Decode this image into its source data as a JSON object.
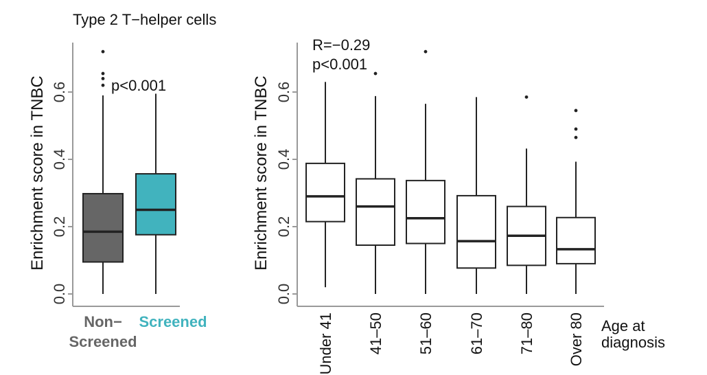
{
  "chart_data": [
    {
      "type": "box",
      "title": "Type 2 T−helper cells",
      "ylabel": "Enrichment score in TNBC",
      "xlabel": "",
      "ylim": [
        0,
        0.75
      ],
      "yticks": [
        "0.0",
        "0.2",
        "0.4",
        "0.6"
      ],
      "ytick_values": [
        0,
        0.2,
        0.4,
        0.6
      ],
      "annotation": "p<0.001",
      "categories": [
        {
          "line1": "Non−",
          "line2": "Screened",
          "color": "#666666",
          "label_color": "#666666"
        },
        {
          "line1": "Screened",
          "line2": "",
          "color": "#41B3BE",
          "label_color": "#41B3BE"
        }
      ],
      "boxes": [
        {
          "whisker_low": 0.0,
          "q1": 0.095,
          "median": 0.185,
          "q3": 0.298,
          "whisker_high": 0.59,
          "outliers": [
            0.62,
            0.64,
            0.655,
            0.72
          ]
        },
        {
          "whisker_low": 0.0,
          "q1": 0.176,
          "median": 0.25,
          "q3": 0.357,
          "whisker_high": 0.595,
          "outliers": []
        }
      ]
    },
    {
      "type": "box",
      "title": "",
      "ylabel": "Enrichment score in TNBC",
      "xlabel": "Age at diagnosis",
      "xlabel_lines": [
        "Age at",
        "diagnosis"
      ],
      "ylim": [
        0,
        0.75
      ],
      "yticks": [
        "0.0",
        "0.2",
        "0.4",
        "0.6"
      ],
      "ytick_values": [
        0,
        0.2,
        0.4,
        0.6
      ],
      "annotation_lines": [
        "R=−0.29",
        "p<0.001"
      ],
      "categories": [
        "Under 41",
        "41–50",
        "51–60",
        "61–70",
        "71–80",
        "Over 80"
      ],
      "boxes": [
        {
          "whisker_low": 0.02,
          "q1": 0.215,
          "median": 0.29,
          "q3": 0.388,
          "whisker_high": 0.63,
          "outliers": []
        },
        {
          "whisker_low": 0.0,
          "q1": 0.145,
          "median": 0.26,
          "q3": 0.342,
          "whisker_high": 0.588,
          "outliers": [
            0.655
          ]
        },
        {
          "whisker_low": 0.0,
          "q1": 0.15,
          "median": 0.225,
          "q3": 0.337,
          "whisker_high": 0.565,
          "outliers": [
            0.72
          ]
        },
        {
          "whisker_low": 0.0,
          "q1": 0.077,
          "median": 0.157,
          "q3": 0.292,
          "whisker_high": 0.585,
          "outliers": []
        },
        {
          "whisker_low": 0.0,
          "q1": 0.085,
          "median": 0.173,
          "q3": 0.26,
          "whisker_high": 0.432,
          "outliers": [
            0.585
          ]
        },
        {
          "whisker_low": 0.0,
          "q1": 0.09,
          "median": 0.133,
          "q3": 0.227,
          "whisker_high": 0.393,
          "outliers": [
            0.465,
            0.49,
            0.545
          ]
        }
      ]
    }
  ]
}
